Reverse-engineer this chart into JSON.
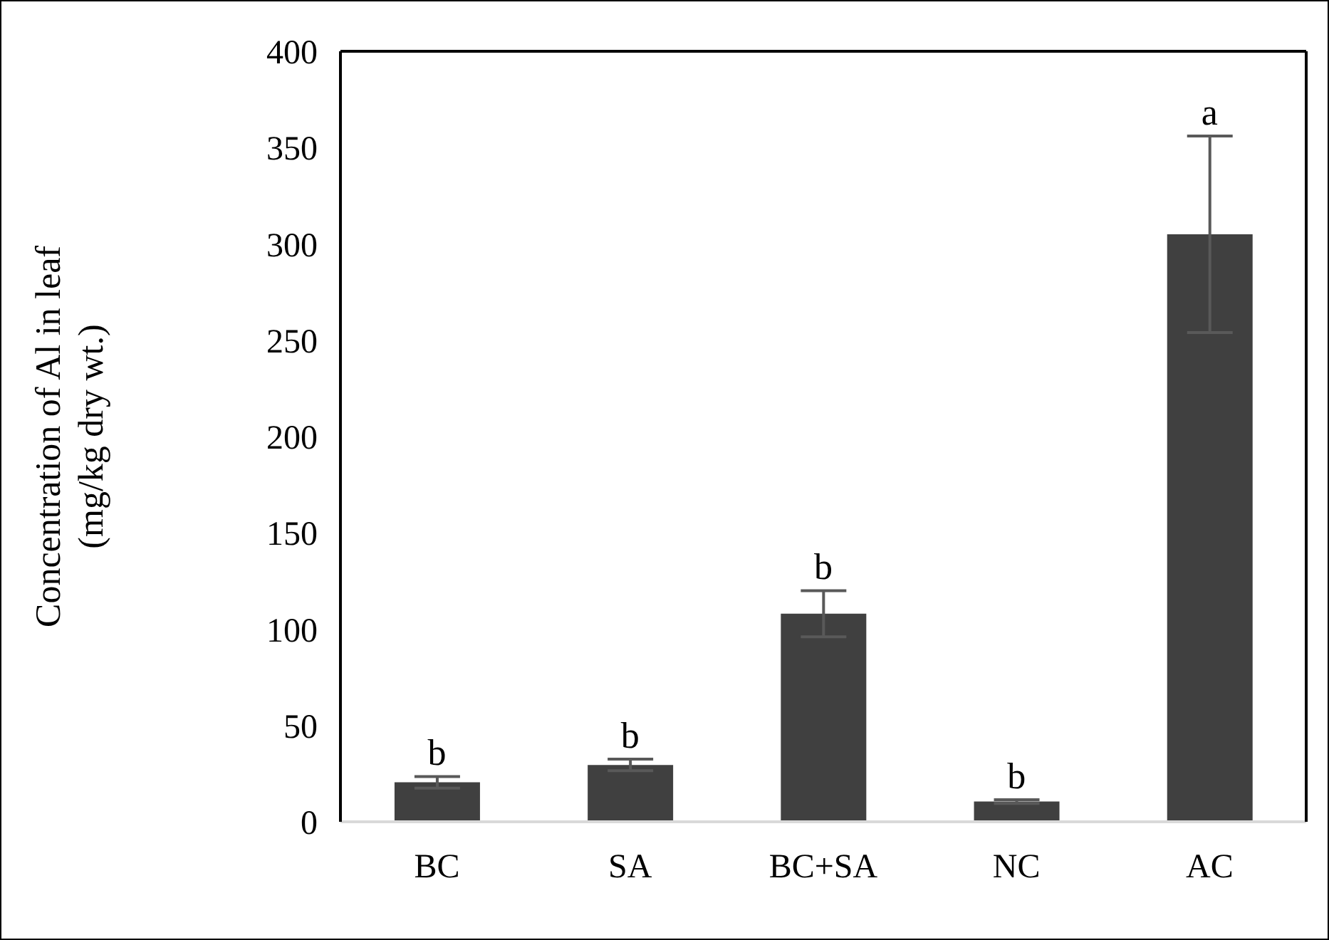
{
  "chart_data": {
    "type": "bar",
    "ylabel": "Concentration of Al in leaf\n(mg/kg dry wt.)",
    "categories": [
      "BC",
      "SA",
      "BC+SA",
      "NC",
      "AC"
    ],
    "values": [
      20.5,
      29.5,
      108,
      10.5,
      305
    ],
    "errors": [
      3,
      3,
      12,
      1,
      51
    ],
    "color": "#404040",
    "ylim": [
      0,
      400
    ],
    "yticks": [
      0,
      50,
      100,
      150,
      200,
      250,
      300,
      350,
      400
    ],
    "grid": false,
    "legend": false,
    "annotations": [
      {
        "text": "b",
        "x": "BC",
        "y": 23.5
      },
      {
        "text": "b",
        "x": "SA",
        "y": 32.5
      },
      {
        "text": "b",
        "x": "BC+SA",
        "y": 120
      },
      {
        "text": "b",
        "x": "NC",
        "y": 11.5
      },
      {
        "text": "a",
        "x": "AC",
        "y": 356
      }
    ]
  }
}
